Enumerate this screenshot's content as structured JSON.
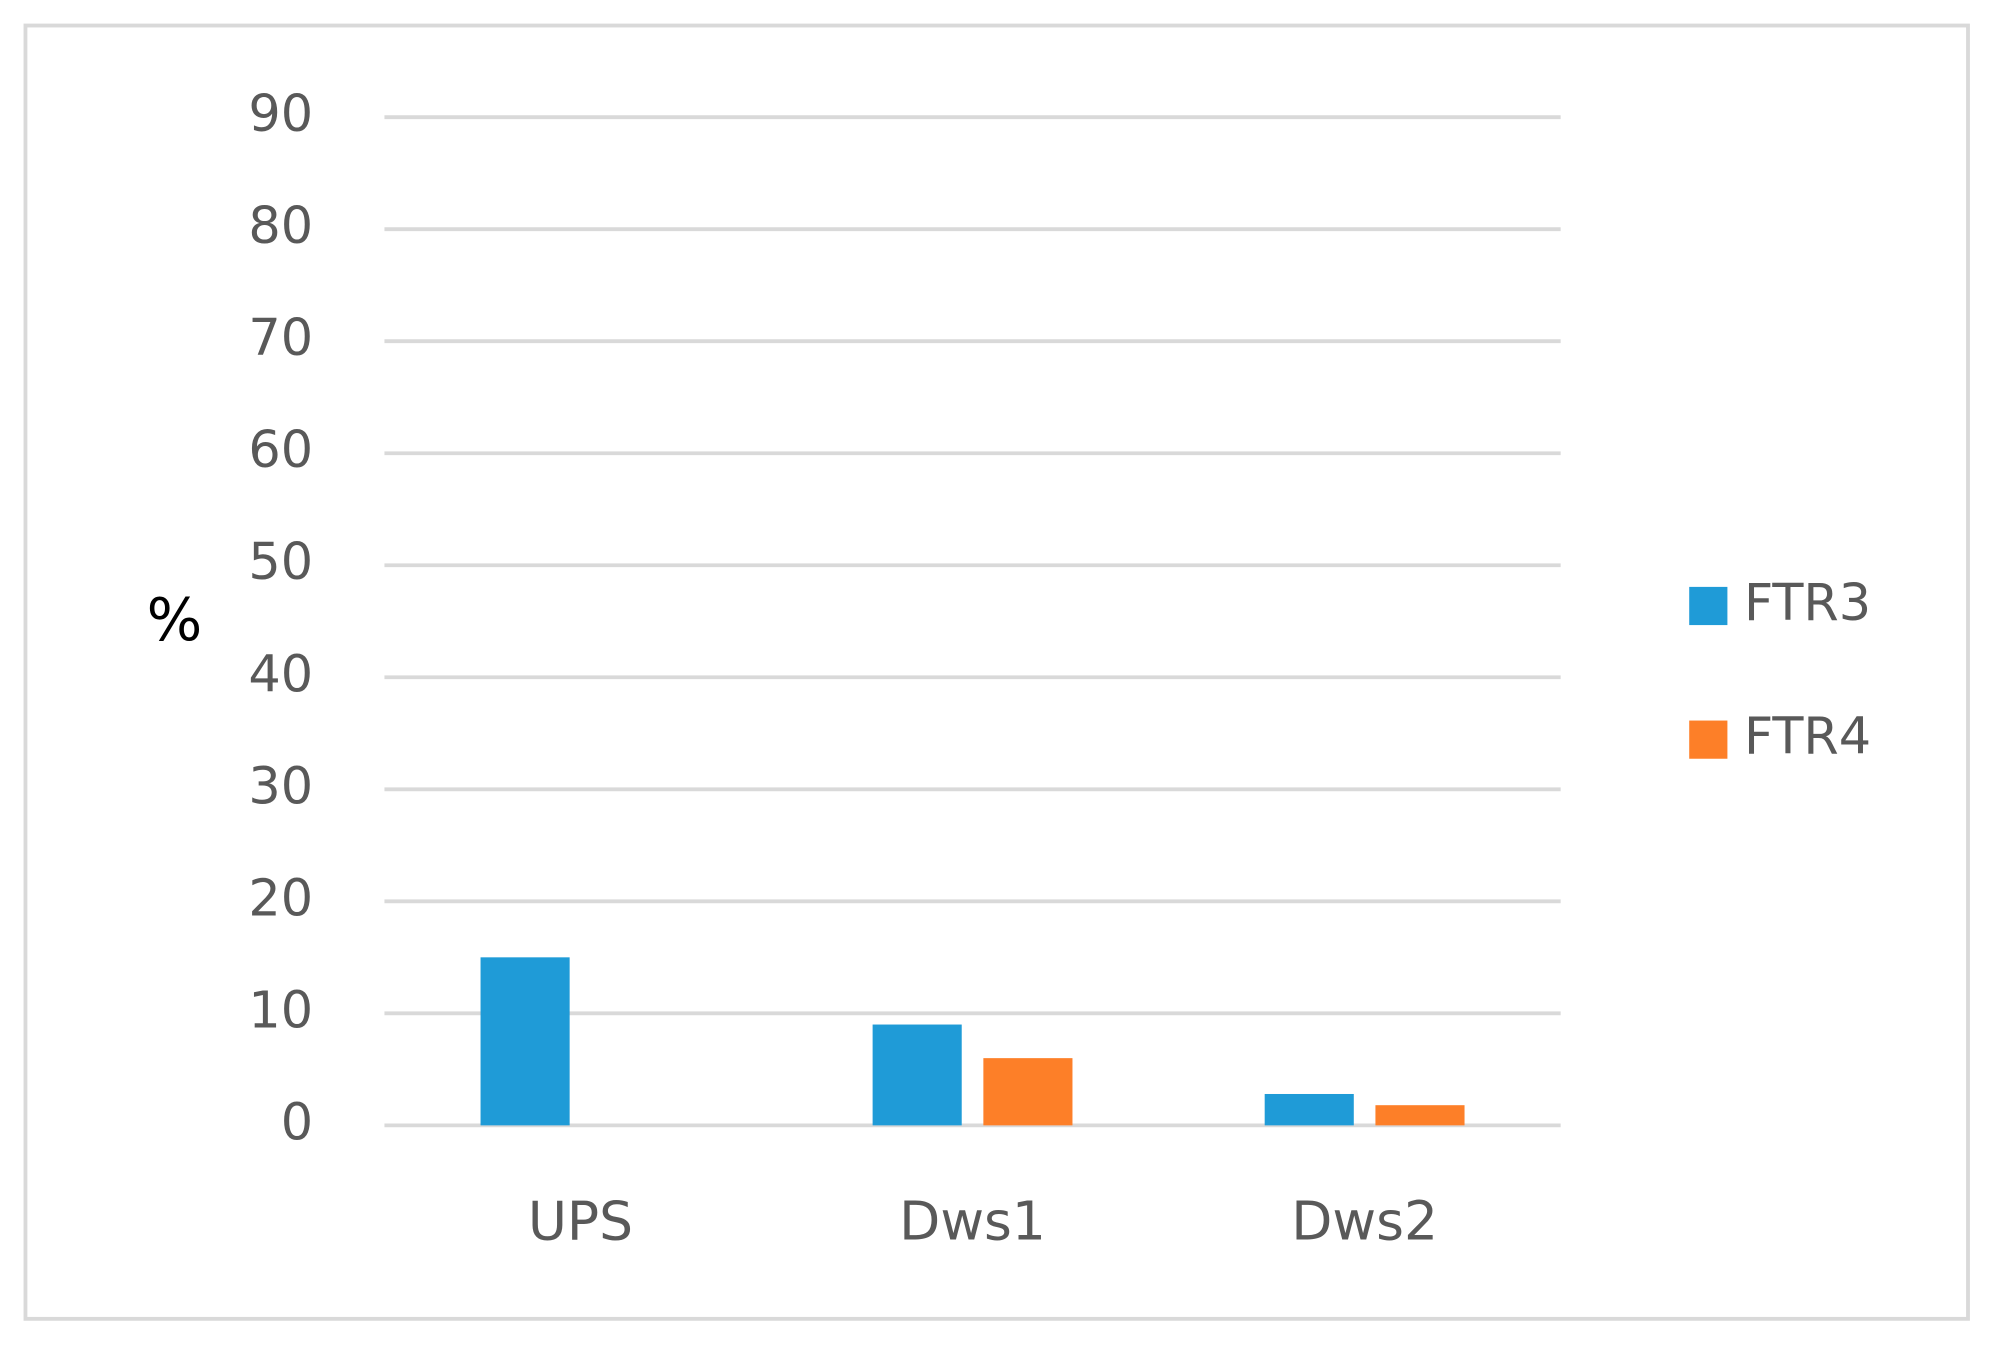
{
  "chart_data": {
    "type": "bar",
    "y_label": "%",
    "categories": [
      "UPS",
      "Dws1",
      "Dws2"
    ],
    "series": [
      {
        "name": "FTR3",
        "color": "#1f9bd7",
        "values": [
          15,
          9,
          2.8
        ]
      },
      {
        "name": "FTR4",
        "color": "#fd7f28",
        "values": [
          null,
          6,
          1.8
        ]
      }
    ],
    "ylim": [
      0,
      90
    ],
    "yticks": [
      0,
      10,
      20,
      30,
      40,
      50,
      60,
      70,
      80,
      90
    ],
    "grid": true,
    "legend": "right"
  }
}
